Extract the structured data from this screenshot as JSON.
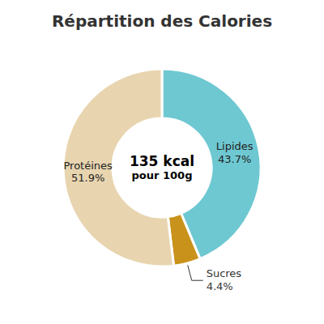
{
  "chart_data": {
    "type": "pie",
    "title": "Répartition des Calories",
    "categories": [
      "Lipides",
      "Sucres",
      "Protéines"
    ],
    "values": [
      43.7,
      4.4,
      51.9
    ],
    "value_labels": [
      "43.7%",
      "4.4%",
      "51.9%"
    ],
    "colors": [
      "#6ec8d2",
      "#c9921a",
      "#e8d5b0"
    ],
    "data_labels": true,
    "annotations": [
      "135 kcal",
      "pour 100g"
    ]
  }
}
